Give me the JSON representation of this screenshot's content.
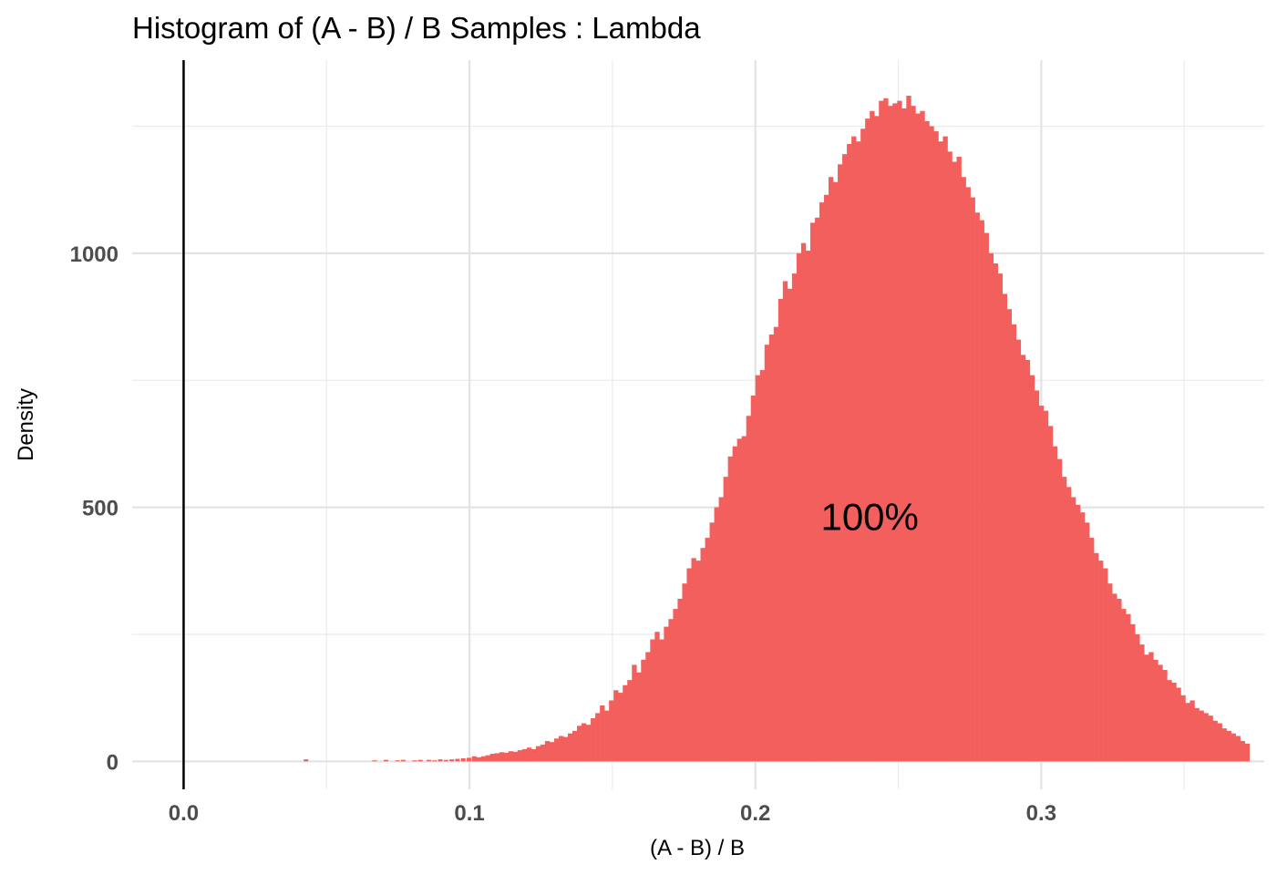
{
  "chart_data": {
    "type": "bar",
    "title": "Histogram of (A - B) / B Samples : Lambda",
    "xlabel": "(A - B) / B",
    "ylabel": "Density",
    "xlim": [
      -0.018,
      0.378
    ],
    "ylim": [
      -55,
      1380
    ],
    "x_ticks": [
      0.0,
      0.1,
      0.2,
      0.3
    ],
    "x_tick_labels": [
      "0.0",
      "0.1",
      "0.2",
      "0.3"
    ],
    "y_ticks": [
      0,
      500,
      1000
    ],
    "y_tick_labels": [
      "0",
      "500",
      "1000"
    ],
    "y_minor_ticks": [
      250,
      750,
      1250
    ],
    "x_minor_ticks": [
      0.05,
      0.15,
      0.25,
      0.35
    ],
    "grid": true,
    "vline_x": 0.0,
    "bar_color": "#F25F5C",
    "annotation": {
      "text": "100%",
      "x": 0.24,
      "y": 455
    },
    "bin_width": 0.0016,
    "bins_x_start": 0.1008,
    "values": [
      10,
      8,
      10,
      12,
      15,
      16,
      18,
      17,
      20,
      19,
      22,
      24,
      27,
      24,
      30,
      33,
      40,
      38,
      45,
      50,
      48,
      55,
      60,
      70,
      75,
      72,
      85,
      95,
      110,
      100,
      120,
      140,
      135,
      150,
      160,
      190,
      175,
      200,
      215,
      240,
      255,
      240,
      265,
      280,
      300,
      320,
      350,
      380,
      400,
      395,
      420,
      440,
      470,
      500,
      520,
      560,
      600,
      620,
      635,
      640,
      680,
      720,
      760,
      770,
      820,
      840,
      855,
      910,
      945,
      930,
      960,
      1000,
      1020,
      1005,
      1060,
      1070,
      1100,
      1115,
      1150,
      1140,
      1175,
      1195,
      1215,
      1230,
      1220,
      1245,
      1265,
      1280,
      1270,
      1300,
      1305,
      1290,
      1295,
      1300,
      1285,
      1310,
      1290,
      1275,
      1280,
      1260,
      1250,
      1240,
      1220,
      1230,
      1200,
      1180,
      1190,
      1150,
      1130,
      1110,
      1080,
      1065,
      1040,
      1000,
      980,
      960,
      920,
      890,
      860,
      830,
      800,
      790,
      760,
      730,
      700,
      690,
      660,
      620,
      595,
      560,
      540,
      520,
      505,
      490,
      470,
      440,
      410,
      395,
      380,
      350,
      330,
      320,
      300,
      290,
      270,
      250,
      230,
      210,
      215,
      200,
      190,
      180,
      160,
      155,
      145,
      130,
      115,
      120,
      105,
      100,
      95,
      90,
      80,
      75,
      65,
      60,
      55,
      50,
      40,
      35
    ],
    "left_tail": [
      {
        "x": 0.042,
        "y": 4
      },
      {
        "x": 0.066,
        "y": 2
      },
      {
        "x": 0.07,
        "y": 3
      },
      {
        "x": 0.074,
        "y": 2
      },
      {
        "x": 0.076,
        "y": 3
      },
      {
        "x": 0.08,
        "y": 2
      },
      {
        "x": 0.082,
        "y": 3
      },
      {
        "x": 0.085,
        "y": 3
      },
      {
        "x": 0.087,
        "y": 2
      },
      {
        "x": 0.089,
        "y": 4
      },
      {
        "x": 0.091,
        "y": 3
      },
      {
        "x": 0.093,
        "y": 4
      },
      {
        "x": 0.095,
        "y": 5
      },
      {
        "x": 0.097,
        "y": 6
      },
      {
        "x": 0.099,
        "y": 7
      }
    ]
  }
}
